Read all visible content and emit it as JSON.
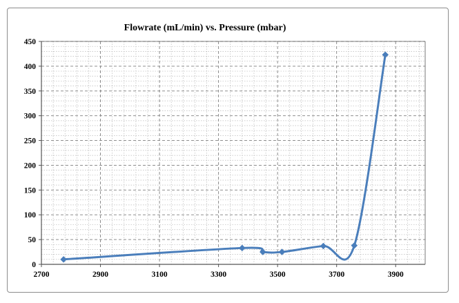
{
  "chart_data": {
    "type": "line",
    "title": "Flowrate (mL/min) vs. Pressure (mbar)",
    "xlabel": "",
    "ylabel": "",
    "xlim": [
      2700,
      4000
    ],
    "ylim": [
      0,
      450
    ],
    "x_ticks": [
      2700,
      2900,
      3100,
      3300,
      3500,
      3700,
      3900
    ],
    "y_ticks": [
      0,
      50,
      100,
      150,
      200,
      250,
      300,
      350,
      400,
      450
    ],
    "x_tick_labels": [
      "2700",
      "2900",
      "3100",
      "3300",
      "3500",
      "3700",
      "3900"
    ],
    "y_tick_labels": [
      "0",
      "50",
      "100",
      "150",
      "200",
      "250",
      "300",
      "350",
      "400",
      "450"
    ],
    "grid": true,
    "smooth": true,
    "marker": "diamond",
    "series_color": "#4a7ebb",
    "series": [
      {
        "x": [
          2775,
          3380,
          3450,
          3515,
          3655,
          3760,
          3865
        ],
        "y": [
          10,
          33,
          25,
          25,
          37,
          38,
          423
        ]
      }
    ]
  }
}
